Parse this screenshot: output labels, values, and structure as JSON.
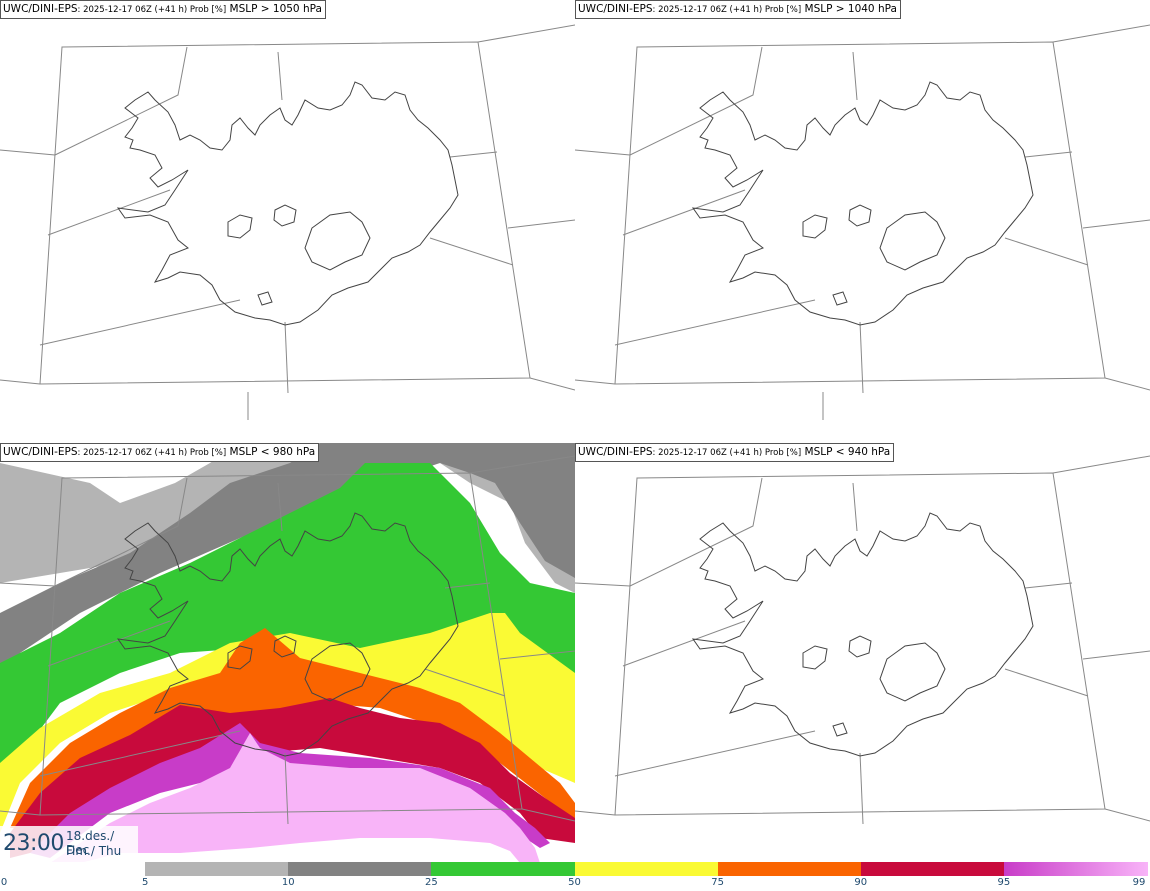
{
  "panels": [
    {
      "model": "UWC/DINI-EPS",
      "run": ": 2025-12-17 06Z (+41 h) Prob [%]",
      "field": "MSLP > 1050 hPa"
    },
    {
      "model": "UWC/DINI-EPS",
      "run": ": 2025-12-17 06Z (+41 h) Prob [%]",
      "field": "MSLP > 1040 hPa"
    },
    {
      "model": "UWC/DINI-EPS",
      "run": ": 2025-12-17 06Z (+41 h) Prob [%]",
      "field": "MSLP < 980 hPa"
    },
    {
      "model": "UWC/DINI-EPS",
      "run": ": 2025-12-17 06Z (+41 h) Prob [%]",
      "field": "MSLP < 940 hPa"
    }
  ],
  "valid_time": {
    "time": "23:00",
    "date_line1": "18.des./ Dec",
    "date_line2": "Fim./ Thu"
  },
  "legend": {
    "ticks": [
      "0",
      "5",
      "10",
      "25",
      "50",
      "75",
      "90",
      "95",
      "99"
    ],
    "colors": [
      "#ffffff",
      "#b4b4b4",
      "#828282",
      "#34c834",
      "#fafa34",
      "#fa6400",
      "#c80a3c",
      "#c83cc8",
      "#f8b4f8"
    ]
  },
  "colors": {
    "p5": "#b4b4b4",
    "p10": "#828282",
    "p25": "#34c834",
    "p50": "#fafa34",
    "p75": "#fa6400",
    "p90": "#c80a3c",
    "p95": "#c83cc8",
    "p99": "#f8b4f8",
    "label_text": "#1f4a6e"
  }
}
